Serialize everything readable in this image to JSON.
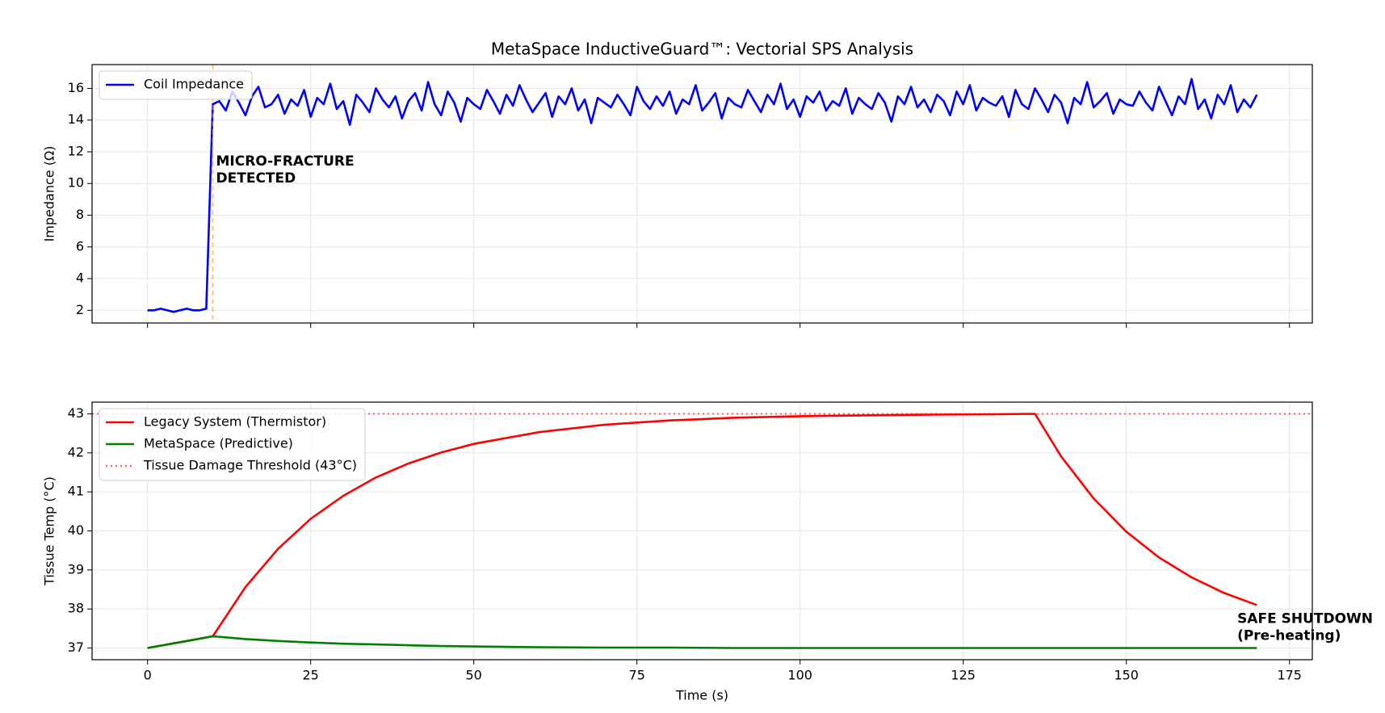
{
  "chart_data": [
    {
      "type": "line",
      "title": "MetaSpace InductiveGuard™: Vectorial SPS Analysis",
      "ylabel": "Impedance (Ω)",
      "x": [
        0,
        1,
        2,
        3,
        4,
        5,
        6,
        7,
        8,
        9,
        10,
        11,
        12,
        13,
        14,
        15,
        16,
        17,
        18,
        19,
        20,
        21,
        22,
        23,
        24,
        25,
        26,
        27,
        28,
        29,
        30,
        31,
        32,
        33,
        34,
        35,
        36,
        37,
        38,
        39,
        40,
        41,
        42,
        43,
        44,
        45,
        46,
        47,
        48,
        49,
        50,
        51,
        52,
        53,
        54,
        55,
        56,
        57,
        58,
        59,
        60,
        61,
        62,
        63,
        64,
        65,
        66,
        67,
        68,
        69,
        70,
        71,
        72,
        73,
        74,
        75,
        76,
        77,
        78,
        79,
        80,
        81,
        82,
        83,
        84,
        85,
        86,
        87,
        88,
        89,
        90,
        91,
        92,
        93,
        94,
        95,
        96,
        97,
        98,
        99,
        100,
        101,
        102,
        103,
        104,
        105,
        106,
        107,
        108,
        109,
        110,
        111,
        112,
        113,
        114,
        115,
        116,
        117,
        118,
        119,
        120,
        121,
        122,
        123,
        124,
        125,
        126,
        127,
        128,
        129,
        130,
        131,
        132,
        133,
        134,
        135,
        136,
        137,
        138,
        139,
        140,
        141,
        142,
        143,
        144,
        145,
        146,
        147,
        148,
        149,
        150,
        151,
        152,
        153,
        154,
        155,
        156,
        157,
        158,
        159,
        160,
        161,
        162,
        163,
        164,
        165,
        166,
        167,
        168,
        169,
        170
      ],
      "series": [
        {
          "name": "Coil Impedance",
          "color": "#0000ff",
          "values": [
            2.0,
            2.0,
            2.1,
            2.0,
            1.9,
            2.0,
            2.1,
            2.0,
            2.0,
            2.1,
            15.0,
            15.2,
            14.6,
            15.8,
            15.1,
            14.3,
            15.5,
            16.1,
            14.8,
            15.0,
            15.6,
            14.4,
            15.3,
            14.9,
            15.9,
            14.2,
            15.4,
            15.0,
            16.3,
            14.7,
            15.2,
            13.7,
            15.6,
            15.1,
            14.5,
            16.0,
            15.3,
            14.8,
            15.5,
            14.1,
            15.2,
            15.7,
            14.6,
            16.4,
            15.0,
            14.3,
            15.8,
            15.1,
            13.9,
            15.4,
            15.0,
            14.7,
            15.9,
            15.2,
            14.4,
            15.6,
            14.9,
            16.2,
            15.3,
            14.5,
            15.1,
            15.7,
            14.2,
            15.5,
            15.0,
            16.0,
            14.6,
            15.3,
            13.8,
            15.4,
            15.1,
            14.8,
            15.6,
            15.0,
            14.3,
            16.1,
            15.2,
            14.7,
            15.5,
            14.9,
            15.8,
            14.4,
            15.3,
            15.0,
            16.2,
            14.6,
            15.1,
            15.7,
            14.1,
            15.4,
            15.0,
            14.8,
            15.9,
            15.2,
            14.5,
            15.6,
            15.0,
            16.3,
            14.7,
            15.3,
            14.2,
            15.5,
            15.1,
            15.8,
            14.6,
            15.2,
            14.9,
            16.0,
            14.4,
            15.4,
            15.0,
            14.7,
            15.7,
            15.1,
            13.9,
            15.5,
            15.0,
            16.1,
            14.8,
            15.3,
            14.5,
            15.6,
            15.2,
            14.3,
            15.8,
            15.0,
            16.2,
            14.6,
            15.4,
            15.1,
            14.9,
            15.5,
            14.2,
            15.9,
            15.0,
            14.7,
            16.0,
            15.3,
            14.5,
            15.6,
            15.1,
            13.8,
            15.4,
            15.0,
            16.4,
            14.8,
            15.2,
            15.7,
            14.4,
            15.3,
            15.0,
            14.9,
            15.8,
            15.1,
            14.6,
            16.1,
            15.2,
            14.3,
            15.5,
            15.0,
            16.6,
            14.7,
            15.3,
            14.1,
            15.6,
            15.0,
            16.2,
            14.5,
            15.3,
            14.8,
            15.6
          ]
        }
      ],
      "vlines": [
        {
          "x": 10,
          "color": "#ffa500"
        }
      ],
      "annotations": [
        {
          "text": [
            "MICRO-FRACTURE",
            "DETECTED"
          ],
          "x": 10.5,
          "y": 11.4,
          "color": "#ffa500"
        }
      ],
      "xlim": [
        -8.5,
        178.5
      ],
      "ylim": [
        1.2,
        17.5
      ],
      "xticks": [
        0,
        25,
        50,
        75,
        100,
        125,
        150,
        175
      ],
      "xtick_labels": false,
      "yticks": [
        2,
        4,
        6,
        8,
        10,
        12,
        14,
        16
      ],
      "grid": true,
      "legend": "upper left"
    },
    {
      "type": "line",
      "ylabel": "Tissue Temp (°C)",
      "xlabel": "Time (s)",
      "x": [
        0,
        5,
        10,
        15,
        20,
        25,
        30,
        35,
        40,
        45,
        50,
        60,
        70,
        80,
        90,
        100,
        110,
        120,
        130,
        136,
        140,
        145,
        150,
        155,
        160,
        165,
        170
      ],
      "series": [
        {
          "name": "Legacy System (Thermistor)",
          "color": "#ff0000",
          "values": [
            37.0,
            37.15,
            37.3,
            38.56,
            39.54,
            40.31,
            40.9,
            41.37,
            41.73,
            42.01,
            42.23,
            42.53,
            42.72,
            42.83,
            42.9,
            42.94,
            42.96,
            42.98,
            42.99,
            43.0,
            41.91,
            40.83,
            39.98,
            39.32,
            38.81,
            38.41,
            38.1
          ]
        },
        {
          "name": "MetaSpace (Predictive)",
          "color": "#008000",
          "values": [
            37.0,
            37.15,
            37.3,
            37.23,
            37.18,
            37.14,
            37.11,
            37.09,
            37.07,
            37.05,
            37.04,
            37.02,
            37.01,
            37.01,
            37.0,
            37.0,
            37.0,
            37.0,
            37.0,
            37.0,
            37.0,
            37.0,
            37.0,
            37.0,
            37.0,
            37.0,
            37.0
          ]
        }
      ],
      "hlines": [
        {
          "name": "Tissue Damage Threshold (43°C)",
          "y": 43,
          "color": "#ff0000"
        }
      ],
      "annotations": [
        {
          "text": [
            "SAFE SHUTDOWN",
            "(Pre-heating)"
          ],
          "x": 167,
          "y": 37.75,
          "color": "#008000"
        }
      ],
      "xlim": [
        -8.5,
        178.5
      ],
      "ylim": [
        36.7,
        43.3
      ],
      "xticks": [
        0,
        25,
        50,
        75,
        100,
        125,
        150,
        175
      ],
      "xtick_labels": true,
      "yticks": [
        37,
        38,
        39,
        40,
        41,
        42,
        43
      ],
      "grid": true,
      "legend": "upper left"
    }
  ]
}
